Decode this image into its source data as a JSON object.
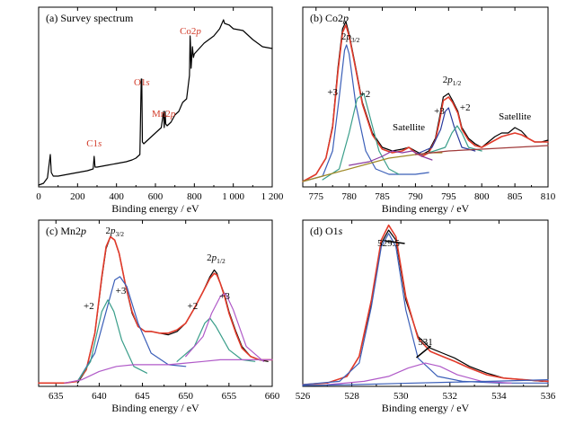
{
  "chart_data": [
    {
      "panel": "a",
      "type": "line",
      "title": "(a) Survey spectrum",
      "xlabel": "Binding energy / eV",
      "ylabel": "",
      "xlim": [
        0,
        1200
      ],
      "xticks": [
        "0",
        "200",
        "400",
        "600",
        "800",
        "1 000",
        "1 200"
      ],
      "annotations": [
        {
          "text": "C1s",
          "x": 285,
          "color": "#d23c2a"
        },
        {
          "text": "O1s",
          "x": 530,
          "color": "#d23c2a"
        },
        {
          "text": "Mn2p",
          "x": 642,
          "color": "#d23c2a"
        },
        {
          "text": "Co2p",
          "x": 780,
          "color": "#d23c2a"
        }
      ],
      "series": [
        {
          "color": "#000000",
          "x": [
            0,
            25,
            45,
            60,
            65,
            75,
            100,
            150,
            200,
            250,
            280,
            285,
            290,
            300,
            350,
            400,
            450,
            480,
            500,
            520,
            527,
            530,
            533,
            540,
            560,
            600,
            630,
            642,
            645,
            650,
            653,
            660,
            680,
            700,
            720,
            740,
            760,
            775,
            778,
            780,
            783,
            790,
            795,
            800,
            850,
            900,
            930,
            950,
            955,
            980,
            1000,
            1050,
            1100,
            1150,
            1200
          ],
          "y": [
            0.01,
            0.02,
            0.05,
            0.18,
            0.08,
            0.06,
            0.06,
            0.07,
            0.08,
            0.09,
            0.1,
            0.17,
            0.11,
            0.11,
            0.12,
            0.13,
            0.14,
            0.15,
            0.16,
            0.18,
            0.6,
            0.6,
            0.25,
            0.24,
            0.26,
            0.3,
            0.33,
            0.42,
            0.33,
            0.42,
            0.35,
            0.34,
            0.36,
            0.4,
            0.42,
            0.47,
            0.49,
            0.62,
            0.84,
            0.8,
            0.66,
            0.78,
            0.72,
            0.74,
            0.8,
            0.84,
            0.88,
            0.93,
            0.91,
            0.9,
            0.88,
            0.87,
            0.82,
            0.78,
            0.77
          ]
        }
      ]
    },
    {
      "panel": "b",
      "type": "line",
      "title": "(b) Co2p",
      "xlabel": "Binding energy / eV",
      "ylabel": "",
      "xlim": [
        773,
        810
      ],
      "xticks": [
        "775",
        "780",
        "785",
        "790",
        "795",
        "800",
        "805",
        "810"
      ],
      "annotations": [
        {
          "text": "2p3/2",
          "x": 780.2
        },
        {
          "text": "+3",
          "x": 777.5
        },
        {
          "text": "+2",
          "x": 782.4
        },
        {
          "text": "Satellite",
          "x": 789
        },
        {
          "text": "2p1/2",
          "x": 795.5
        },
        {
          "text": "+3",
          "x": 793.6
        },
        {
          "text": "+2",
          "x": 797.5
        },
        {
          "text": "Satellite",
          "x": 805
        }
      ],
      "series": [
        {
          "name": "",
          "color": "#000000",
          "x": [
            773,
            775,
            776.5,
            777.5,
            778.3,
            779,
            779.5,
            780,
            780.8,
            782,
            783.5,
            785,
            786.5,
            788,
            789,
            790,
            791,
            792,
            793,
            793.6,
            794.2,
            795,
            795.6,
            796.4,
            797,
            798,
            799,
            800,
            801,
            802,
            803,
            804,
            805,
            806,
            807,
            808,
            809,
            810
          ],
          "y": [
            0.03,
            0.07,
            0.16,
            0.34,
            0.66,
            0.88,
            0.92,
            0.85,
            0.7,
            0.47,
            0.3,
            0.22,
            0.2,
            0.21,
            0.22,
            0.2,
            0.18,
            0.2,
            0.27,
            0.38,
            0.5,
            0.52,
            0.48,
            0.42,
            0.33,
            0.27,
            0.24,
            0.22,
            0.25,
            0.28,
            0.3,
            0.3,
            0.33,
            0.31,
            0.27,
            0.25,
            0.25,
            0.26
          ]
        },
        {
          "name": "",
          "color": "#e23a2a",
          "x": [
            773,
            775,
            776.5,
            777.5,
            778.3,
            779,
            779.5,
            780,
            780.8,
            782,
            783.5,
            785,
            786.5,
            788,
            789,
            790,
            791,
            792,
            793,
            793.6,
            794.2,
            795,
            795.6,
            796.4,
            797,
            798,
            799,
            800,
            801,
            802,
            803,
            804,
            805,
            806,
            807,
            808,
            809,
            810
          ],
          "y": [
            0.03,
            0.07,
            0.16,
            0.33,
            0.64,
            0.86,
            0.9,
            0.84,
            0.69,
            0.46,
            0.29,
            0.21,
            0.19,
            0.2,
            0.22,
            0.19,
            0.17,
            0.19,
            0.26,
            0.36,
            0.48,
            0.5,
            0.47,
            0.41,
            0.32,
            0.26,
            0.23,
            0.22,
            0.24,
            0.26,
            0.28,
            0.29,
            0.3,
            0.29,
            0.27,
            0.25,
            0.25,
            0.25
          ]
        },
        {
          "name": "",
          "color": "#3b5fb8",
          "x": [
            773,
            776,
            777.5,
            778.5,
            779.3,
            779.6,
            780,
            781,
            782.5,
            784,
            786,
            788,
            790,
            792
          ],
          "y": [
            0.03,
            0.06,
            0.2,
            0.5,
            0.76,
            0.79,
            0.74,
            0.46,
            0.2,
            0.1,
            0.07,
            0.07,
            0.07,
            0.08
          ]
        },
        {
          "name": "",
          "color": "#3a9e8a",
          "x": [
            776,
            778.5,
            780,
            781.2,
            782.2,
            783.2,
            784.5,
            786,
            787.5
          ],
          "y": [
            0.04,
            0.1,
            0.3,
            0.49,
            0.52,
            0.38,
            0.2,
            0.1,
            0.07
          ]
        },
        {
          "name": "",
          "color": "#a08a28",
          "x": [
            773,
            778,
            782,
            786,
            790,
            792.5,
            794
          ],
          "y": [
            0.03,
            0.08,
            0.12,
            0.16,
            0.18,
            0.19,
            0.19
          ]
        },
        {
          "name": "",
          "color": "#8a3aa0",
          "x": [
            780,
            783,
            785,
            786.5,
            788,
            789.5,
            791,
            792.5
          ],
          "y": [
            0.12,
            0.14,
            0.17,
            0.2,
            0.19,
            0.2,
            0.17,
            0.15
          ]
        },
        {
          "name": "",
          "color": "#2a3a9c",
          "x": [
            790,
            792.5,
            793.8,
            794.5,
            795,
            795.8,
            797,
            799
          ],
          "y": [
            0.18,
            0.22,
            0.32,
            0.42,
            0.44,
            0.34,
            0.22,
            0.2
          ]
        },
        {
          "name": "",
          "color": "#3a9e8a",
          "x": [
            792,
            794.5,
            795.5,
            796.3,
            797,
            798,
            800
          ],
          "y": [
            0.19,
            0.22,
            0.3,
            0.34,
            0.3,
            0.22,
            0.2
          ]
        },
        {
          "name": "",
          "color": "#a03a3a",
          "x": [
            790,
            795,
            800,
            805,
            810
          ],
          "y": [
            0.18,
            0.2,
            0.21,
            0.22,
            0.23
          ]
        }
      ]
    },
    {
      "panel": "c",
      "type": "line",
      "title": "(c) Mn2p",
      "xlabel": "Binding energy / eV",
      "ylabel": "",
      "xlim": [
        633,
        660
      ],
      "xticks": [
        "635",
        "640",
        "645",
        "650",
        "655",
        "660"
      ],
      "annotations": [
        {
          "text": "2p3/2",
          "x": 641.8
        },
        {
          "text": "+2",
          "x": 638.8
        },
        {
          "text": "+3",
          "x": 642.5
        },
        {
          "text": "2p1/2",
          "x": 653.5
        },
        {
          "text": "+2",
          "x": 650.8
        },
        {
          "text": "+3",
          "x": 654.5
        }
      ],
      "series": [
        {
          "name": "",
          "color": "#000000",
          "x": [
            637.5,
            638.5,
            639.5,
            640.3,
            640.8,
            641.3,
            641.8,
            642.3,
            643,
            643.8,
            644.5,
            645.3,
            646,
            647,
            648,
            649,
            650,
            651,
            652,
            652.8,
            653.3,
            653.6,
            654,
            654.5,
            655,
            655.8,
            656.5,
            657.5,
            658.5,
            659.5
          ],
          "y": [
            0.02,
            0.1,
            0.32,
            0.65,
            0.83,
            0.9,
            0.88,
            0.8,
            0.62,
            0.44,
            0.36,
            0.33,
            0.33,
            0.32,
            0.31,
            0.33,
            0.38,
            0.47,
            0.57,
            0.66,
            0.7,
            0.68,
            0.62,
            0.55,
            0.45,
            0.33,
            0.24,
            0.18,
            0.16,
            0.15
          ]
        },
        {
          "name": "",
          "color": "#e23a2a",
          "x": [
            633,
            636,
            637.5,
            638.5,
            639.5,
            640.3,
            640.8,
            641.3,
            641.8,
            642.3,
            643,
            643.8,
            644.5,
            645.3,
            646,
            647,
            648,
            649,
            650,
            651,
            652,
            652.8,
            653.3,
            653.6,
            654,
            654.5,
            655,
            655.8,
            656.5,
            657.5,
            658.5,
            660
          ],
          "y": [
            0.02,
            0.02,
            0.03,
            0.1,
            0.32,
            0.66,
            0.84,
            0.9,
            0.88,
            0.8,
            0.62,
            0.45,
            0.36,
            0.33,
            0.33,
            0.32,
            0.32,
            0.34,
            0.38,
            0.47,
            0.57,
            0.65,
            0.68,
            0.67,
            0.62,
            0.54,
            0.44,
            0.32,
            0.23,
            0.18,
            0.16,
            0.16
          ]
        },
        {
          "name": "",
          "color": "#3b5fb8",
          "x": [
            637.5,
            639.5,
            640.8,
            641.8,
            642.4,
            643.2,
            644.5,
            646,
            648,
            650
          ],
          "y": [
            0.03,
            0.2,
            0.45,
            0.64,
            0.66,
            0.6,
            0.38,
            0.2,
            0.13,
            0.12
          ]
        },
        {
          "name": "",
          "color": "#3a9e8a",
          "x": [
            637.5,
            639,
            640.3,
            641,
            641.7,
            642.6,
            644,
            645.5
          ],
          "y": [
            0.03,
            0.15,
            0.45,
            0.52,
            0.45,
            0.28,
            0.12,
            0.08
          ]
        },
        {
          "name": "",
          "color": "#3a9e8a",
          "x": [
            649,
            651,
            652.2,
            652.8,
            653.5,
            655,
            656.5,
            658
          ],
          "y": [
            0.15,
            0.24,
            0.38,
            0.41,
            0.36,
            0.22,
            0.16,
            0.15
          ]
        },
        {
          "name": "",
          "color": "#b05ac8",
          "x": [
            650,
            652,
            653,
            654,
            654.6,
            655.5,
            657,
            659
          ],
          "y": [
            0.18,
            0.3,
            0.44,
            0.54,
            0.56,
            0.46,
            0.24,
            0.15
          ]
        },
        {
          "name": "",
          "color": "#b05ac8",
          "x": [
            636,
            638,
            640,
            642,
            644,
            646,
            648,
            650,
            652,
            654,
            656,
            658,
            660
          ],
          "y": [
            0.02,
            0.04,
            0.09,
            0.12,
            0.13,
            0.13,
            0.13,
            0.14,
            0.15,
            0.16,
            0.16,
            0.16,
            0.16
          ]
        }
      ]
    },
    {
      "panel": "d",
      "type": "line",
      "title": "(d) O1s",
      "xlabel": "Binding energy / eV",
      "ylabel": "",
      "xlim": [
        526,
        536
      ],
      "xticks": [
        "526",
        "528",
        "530",
        "532",
        "534",
        "536"
      ],
      "annotations": [
        {
          "text": "529.5",
          "x": 529.5
        },
        {
          "text": "531",
          "x": 531
        }
      ],
      "series": [
        {
          "name": "",
          "color": "#000000",
          "x": [
            527.8,
            528.3,
            528.8,
            529.2,
            529.5,
            529.8,
            530.2,
            530.7,
            531.2,
            531.7,
            532.2,
            532.8,
            533.5,
            534.2,
            535,
            535.8
          ],
          "y": [
            0.06,
            0.18,
            0.5,
            0.86,
            0.94,
            0.88,
            0.52,
            0.3,
            0.23,
            0.2,
            0.17,
            0.12,
            0.08,
            0.05,
            0.04,
            0.03
          ]
        },
        {
          "name": "",
          "color": "#e23a2a",
          "x": [
            526,
            527,
            527.8,
            528.3,
            528.8,
            529.2,
            529.5,
            529.8,
            530.2,
            530.7,
            531.2,
            531.7,
            532.2,
            532.8,
            533.5,
            534.2,
            535,
            536
          ],
          "y": [
            0.01,
            0.02,
            0.06,
            0.18,
            0.52,
            0.88,
            0.97,
            0.9,
            0.54,
            0.29,
            0.21,
            0.18,
            0.15,
            0.11,
            0.07,
            0.05,
            0.04,
            0.03
          ]
        },
        {
          "name": "",
          "color": "#3b5fb8",
          "x": [
            526,
            527.5,
            528.3,
            528.8,
            529.2,
            529.5,
            529.8,
            530.2,
            530.7,
            531.5,
            532.5,
            534,
            536
          ],
          "y": [
            0.01,
            0.03,
            0.14,
            0.48,
            0.84,
            0.92,
            0.84,
            0.46,
            0.17,
            0.06,
            0.03,
            0.02,
            0.02
          ]
        },
        {
          "name": "",
          "color": "#b05ac8",
          "x": [
            527,
            528.5,
            529.5,
            530.3,
            531,
            531.6,
            532.3,
            533.3,
            534.5
          ],
          "y": [
            0.01,
            0.03,
            0.06,
            0.11,
            0.14,
            0.12,
            0.07,
            0.03,
            0.02
          ]
        },
        {
          "name": "",
          "color": "#3b5fb8",
          "x": [
            526,
            528,
            530,
            532,
            534,
            536
          ],
          "y": [
            0.005,
            0.01,
            0.018,
            0.025,
            0.032,
            0.04
          ]
        }
      ]
    }
  ]
}
